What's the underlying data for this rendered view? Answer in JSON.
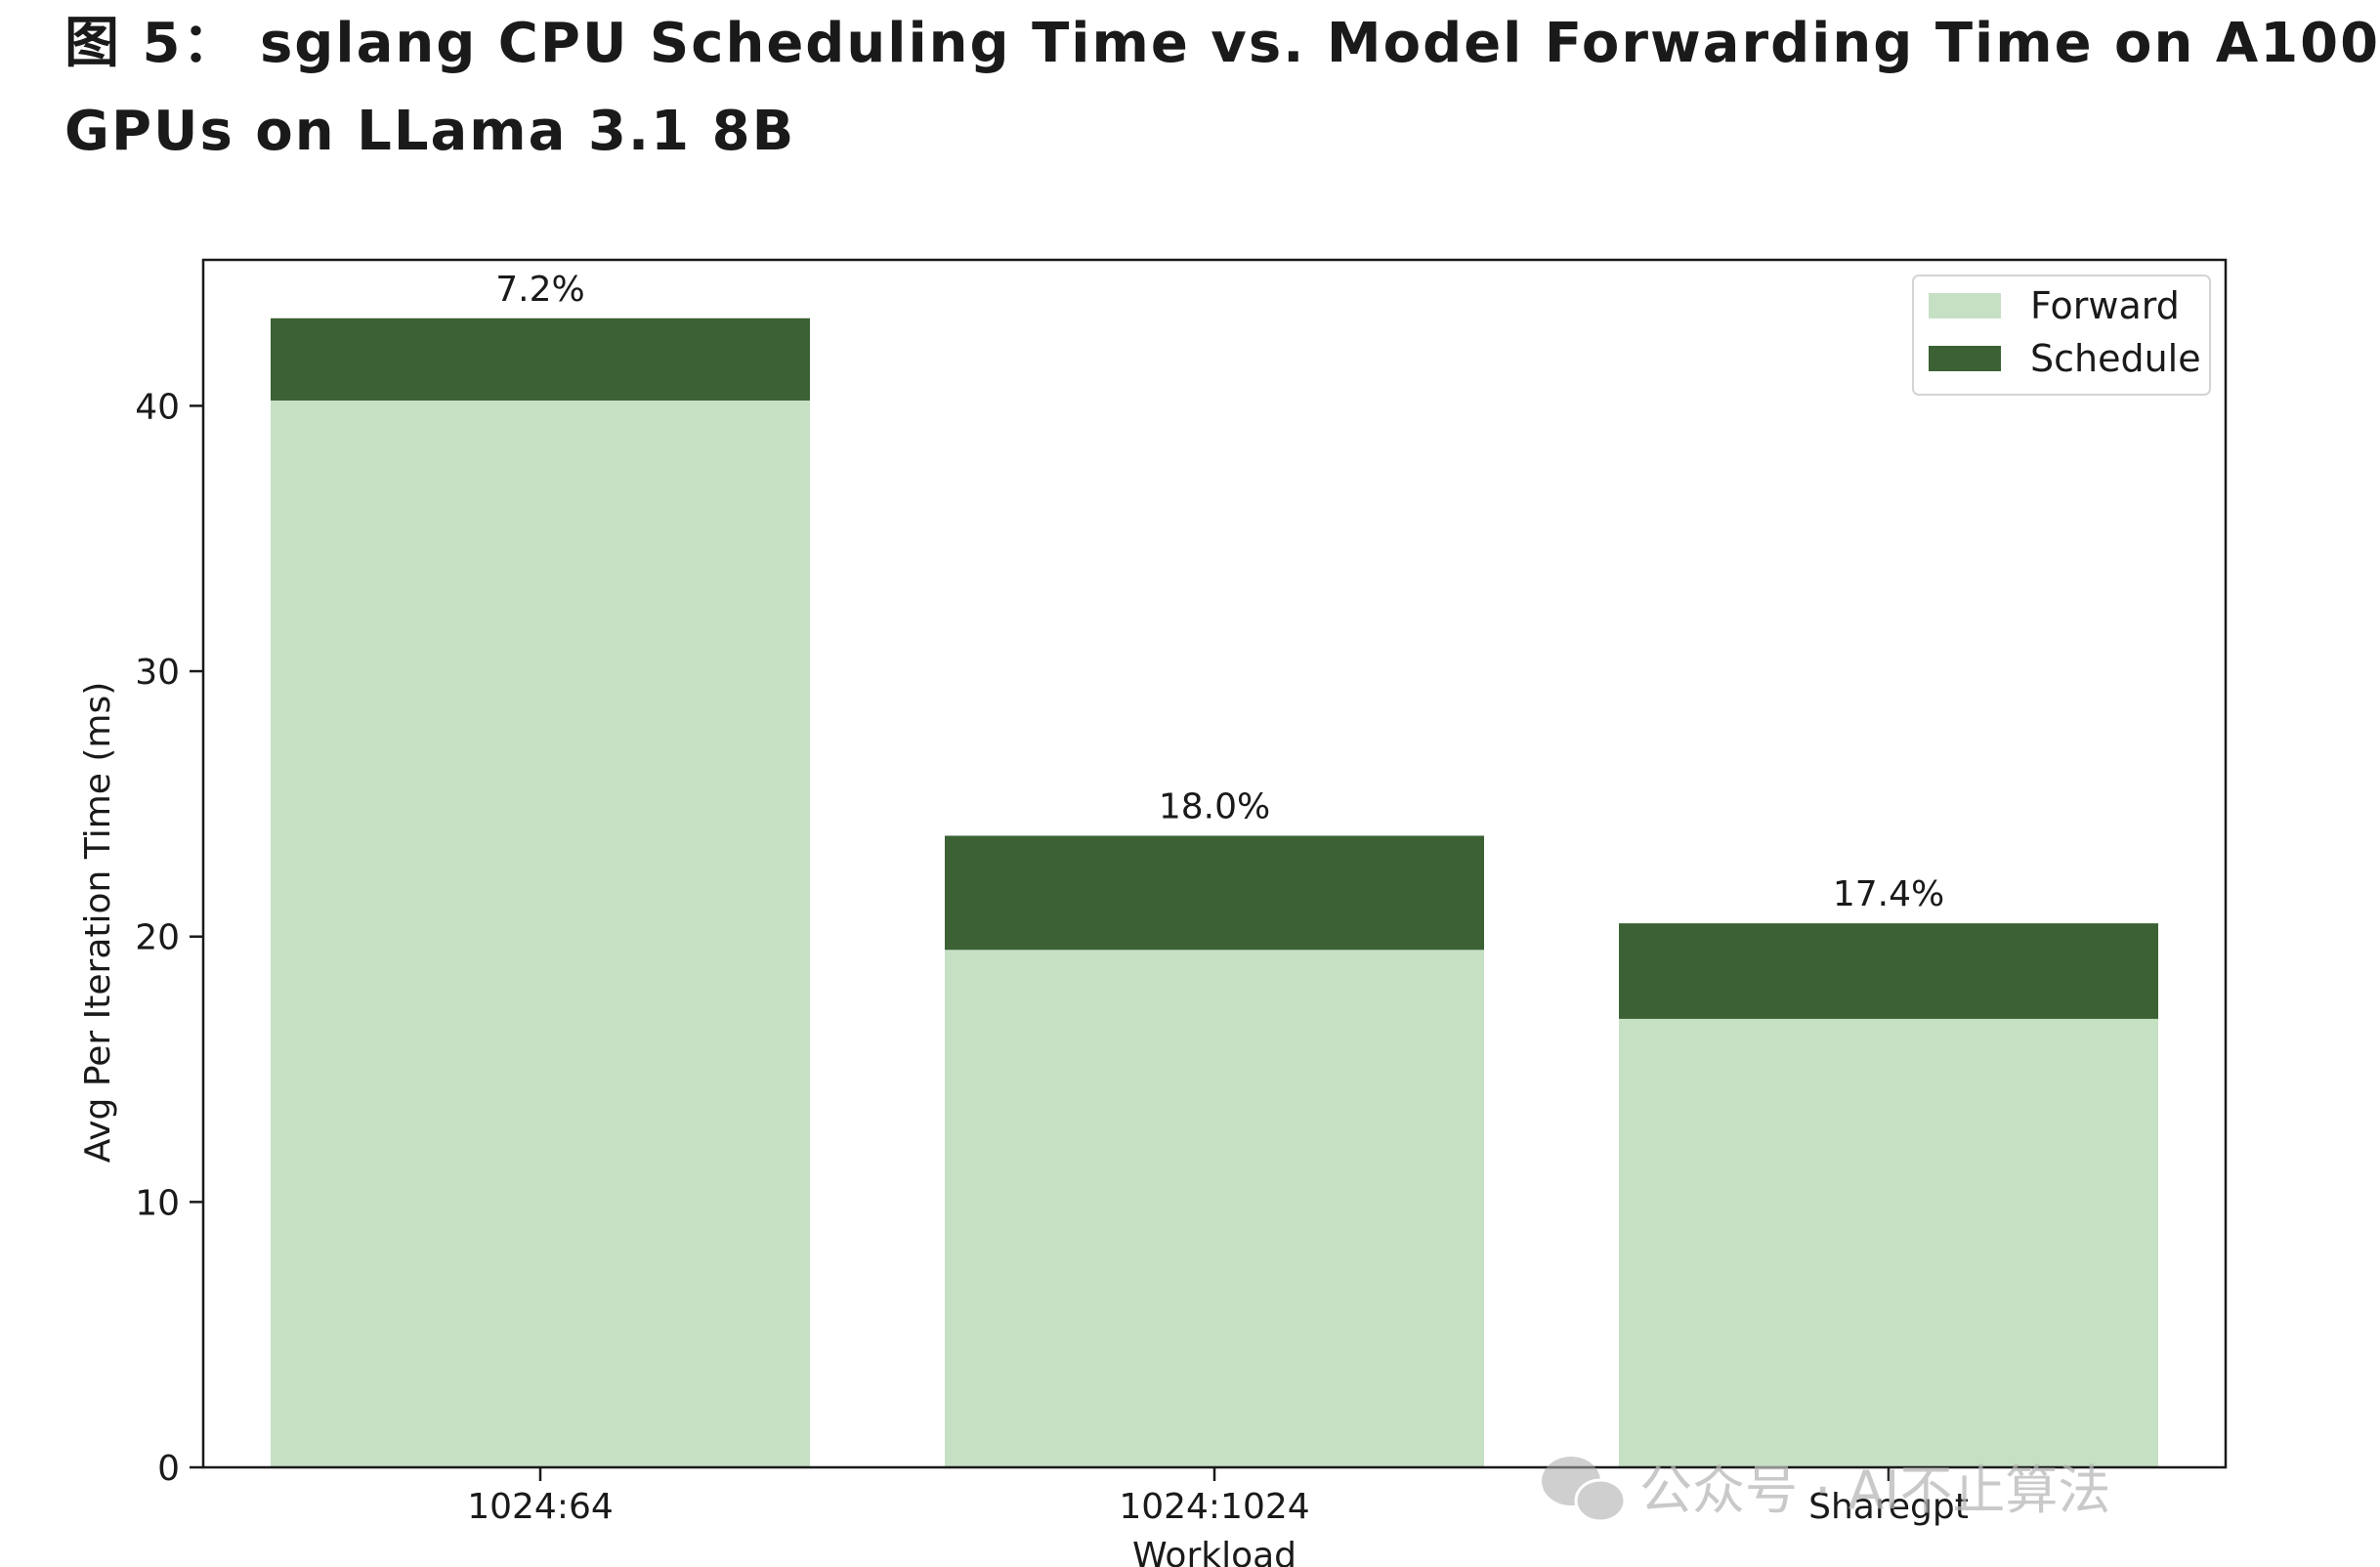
{
  "figure": {
    "title_line1": "图 5： sglang CPU Scheduling Time vs. Model Forwarding Time on A100",
    "title_line2": "GPUs on LLama 3.1 8B"
  },
  "watermark": {
    "text": "公众号 · AI不止算法",
    "icon": "wechat-icon"
  },
  "colors": {
    "forward": "#c6e0c4",
    "schedule": "#3b6134",
    "axis": "#1a1a1a"
  },
  "chart_data": {
    "type": "bar",
    "stacked": true,
    "categories": [
      "1024:64",
      "1024:1024",
      "Sharegpt"
    ],
    "series": [
      {
        "name": "Forward",
        "values": [
          40.2,
          19.5,
          16.9
        ]
      },
      {
        "name": "Schedule",
        "values": [
          3.1,
          4.3,
          3.6
        ]
      }
    ],
    "bar_labels": [
      "7.2%",
      "18.0%",
      "17.4%"
    ],
    "xlabel": "Workload",
    "ylabel": "Avg Per Iteration Time (ms)",
    "ylim": [
      0,
      45.5
    ],
    "yticks": [
      0,
      10,
      20,
      30,
      40
    ],
    "grid": false,
    "legend_position": "top-right"
  }
}
